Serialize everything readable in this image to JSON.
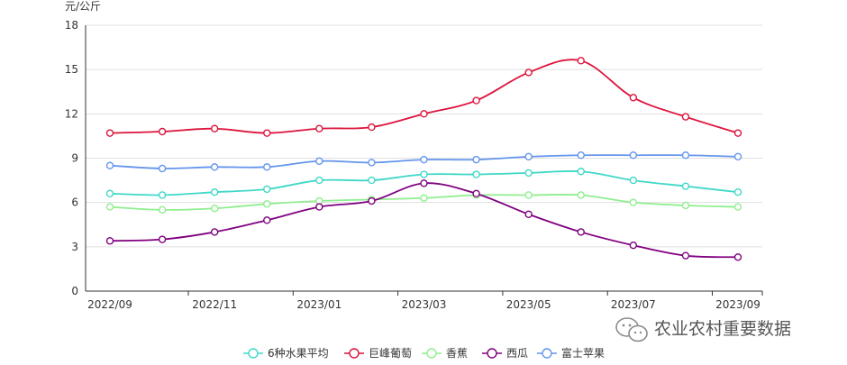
{
  "chart_data": {
    "type": "line",
    "ylabel": "元/公斤",
    "ylim": [
      0,
      18
    ],
    "yticks": [
      0,
      3,
      6,
      9,
      12,
      15,
      18
    ],
    "x": [
      "2022/09",
      "2022/10",
      "2022/11",
      "2022/12",
      "2023/01",
      "2023/02",
      "2023/03",
      "2023/04",
      "2023/05",
      "2023/06",
      "2023/07",
      "2023/08",
      "2023/09"
    ],
    "xtick_labels": [
      "2022/09",
      "2022/11",
      "2023/01",
      "2023/03",
      "2023/05",
      "2023/07",
      "2023/09"
    ],
    "grid": "horizontal",
    "legend_position": "bottom-center",
    "series": [
      {
        "name": "6种水果平均",
        "color": "#40d8c8",
        "values": [
          6.6,
          6.5,
          6.7,
          6.9,
          7.5,
          7.5,
          7.9,
          7.9,
          8.0,
          8.1,
          7.5,
          7.1,
          6.7
        ]
      },
      {
        "name": "巨峰葡萄",
        "color": "#dc143c",
        "values": [
          10.7,
          10.8,
          11.0,
          10.7,
          11.0,
          11.1,
          12.0,
          12.9,
          14.8,
          15.6,
          13.1,
          11.8,
          10.7
        ]
      },
      {
        "name": "香蕉",
        "color": "#90ee90",
        "values": [
          5.7,
          5.5,
          5.6,
          5.9,
          6.1,
          6.2,
          6.3,
          6.5,
          6.5,
          6.5,
          6.0,
          5.8,
          5.7
        ]
      },
      {
        "name": "西瓜",
        "color": "#800080",
        "values": [
          3.4,
          3.5,
          4.0,
          4.8,
          5.7,
          6.1,
          7.3,
          6.6,
          5.2,
          4.0,
          3.1,
          2.4,
          2.3
        ]
      },
      {
        "name": "富士苹果",
        "color": "#6495ed",
        "values": [
          8.5,
          8.3,
          8.4,
          8.4,
          8.8,
          8.7,
          8.9,
          8.9,
          9.1,
          9.2,
          9.2,
          9.2,
          9.1
        ]
      }
    ]
  },
  "watermark": {
    "text": "农业农村重要数据",
    "icon": "wechat-icon"
  }
}
